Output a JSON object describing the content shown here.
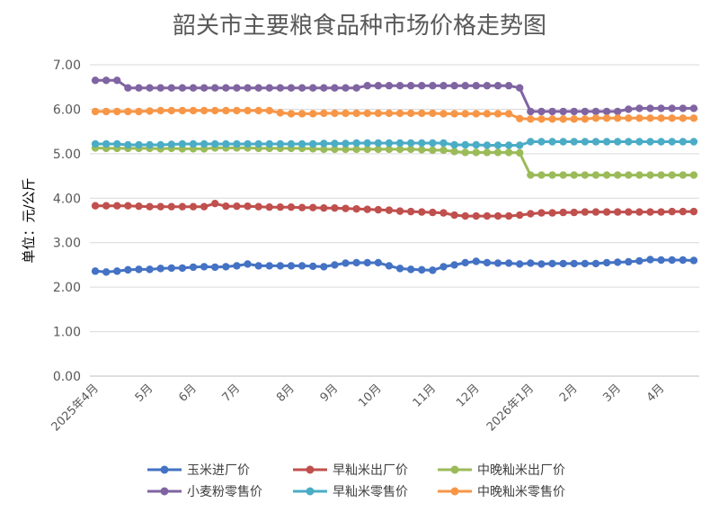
{
  "chart_data": {
    "type": "line",
    "title": "韶关市主要粮食品种市场价格走势图",
    "ylabel": "单位：元/公斤",
    "xlabel": "",
    "ylim": [
      0,
      7
    ],
    "yticks": [
      "0.00",
      "1.00",
      "2.00",
      "3.00",
      "4.00",
      "5.00",
      "6.00",
      "7.00"
    ],
    "xtick_labels": [
      "2025年4月",
      "5月",
      "6月",
      "7月",
      "8月",
      "9月",
      "10月",
      "11月",
      "12月",
      "2026年1月",
      "2月",
      "3月",
      "4月"
    ],
    "xtick_index": [
      0,
      5,
      9,
      13,
      18,
      22,
      26,
      31,
      35,
      40,
      44,
      48,
      52
    ],
    "grid": true,
    "legend_position": "bottom",
    "series": [
      {
        "name": "玉米进厂价",
        "color": "#4472C4",
        "values": [
          2.36,
          2.34,
          2.36,
          2.39,
          2.4,
          2.4,
          2.42,
          2.43,
          2.43,
          2.45,
          2.46,
          2.45,
          2.46,
          2.48,
          2.52,
          2.48,
          2.48,
          2.48,
          2.48,
          2.48,
          2.47,
          2.46,
          2.5,
          2.54,
          2.55,
          2.55,
          2.55,
          2.48,
          2.42,
          2.4,
          2.39,
          2.38,
          2.46,
          2.5,
          2.55,
          2.58,
          2.55,
          2.54,
          2.54,
          2.52,
          2.54,
          2.52,
          2.53,
          2.53,
          2.53,
          2.53,
          2.53,
          2.55,
          2.56,
          2.57,
          2.59,
          2.62,
          2.61,
          2.61,
          2.61,
          2.6
        ]
      },
      {
        "name": "早籼米出厂价",
        "color": "#C0504D",
        "values": [
          3.83,
          3.83,
          3.83,
          3.83,
          3.82,
          3.81,
          3.81,
          3.81,
          3.81,
          3.81,
          3.81,
          3.88,
          3.82,
          3.82,
          3.82,
          3.81,
          3.8,
          3.8,
          3.8,
          3.79,
          3.79,
          3.78,
          3.78,
          3.77,
          3.76,
          3.75,
          3.74,
          3.73,
          3.71,
          3.7,
          3.69,
          3.68,
          3.67,
          3.62,
          3.6,
          3.6,
          3.6,
          3.6,
          3.6,
          3.62,
          3.65,
          3.67,
          3.67,
          3.68,
          3.68,
          3.69,
          3.69,
          3.69,
          3.69,
          3.69,
          3.69,
          3.69,
          3.69,
          3.7,
          3.7,
          3.7
        ]
      },
      {
        "name": "中晚籼米出厂价",
        "color": "#9BBB59",
        "values": [
          5.13,
          5.12,
          5.12,
          5.12,
          5.12,
          5.12,
          5.11,
          5.12,
          5.11,
          5.11,
          5.11,
          5.13,
          5.13,
          5.13,
          5.13,
          5.12,
          5.12,
          5.12,
          5.12,
          5.12,
          5.11,
          5.1,
          5.1,
          5.1,
          5.1,
          5.1,
          5.1,
          5.1,
          5.1,
          5.1,
          5.09,
          5.08,
          5.08,
          5.05,
          5.03,
          5.03,
          5.03,
          5.03,
          5.03,
          5.02,
          4.52,
          4.52,
          4.52,
          4.52,
          4.52,
          4.52,
          4.52,
          4.52,
          4.52,
          4.52,
          4.52,
          4.52,
          4.52,
          4.52,
          4.52,
          4.52
        ]
      },
      {
        "name": "小麦粉零售价",
        "color": "#8064A2",
        "values": [
          6.65,
          6.65,
          6.65,
          6.48,
          6.48,
          6.48,
          6.48,
          6.48,
          6.48,
          6.48,
          6.48,
          6.48,
          6.48,
          6.48,
          6.48,
          6.48,
          6.48,
          6.48,
          6.48,
          6.48,
          6.48,
          6.48,
          6.48,
          6.48,
          6.48,
          6.53,
          6.53,
          6.53,
          6.53,
          6.53,
          6.53,
          6.53,
          6.53,
          6.53,
          6.53,
          6.53,
          6.53,
          6.53,
          6.53,
          6.48,
          5.95,
          5.95,
          5.95,
          5.95,
          5.95,
          5.95,
          5.95,
          5.95,
          5.95,
          6.0,
          6.02,
          6.02,
          6.02,
          6.02,
          6.02,
          6.02
        ]
      },
      {
        "name": "早籼米零售价",
        "color": "#4BACC6",
        "values": [
          5.22,
          5.22,
          5.22,
          5.2,
          5.2,
          5.2,
          5.2,
          5.21,
          5.22,
          5.22,
          5.22,
          5.22,
          5.22,
          5.22,
          5.22,
          5.22,
          5.22,
          5.22,
          5.22,
          5.22,
          5.22,
          5.23,
          5.23,
          5.23,
          5.24,
          5.24,
          5.24,
          5.24,
          5.24,
          5.24,
          5.24,
          5.24,
          5.24,
          5.2,
          5.2,
          5.2,
          5.19,
          5.19,
          5.19,
          5.19,
          5.27,
          5.27,
          5.27,
          5.27,
          5.27,
          5.27,
          5.27,
          5.27,
          5.27,
          5.27,
          5.27,
          5.27,
          5.27,
          5.27,
          5.27,
          5.27
        ]
      },
      {
        "name": "中晚籼米零售价",
        "color": "#F79646",
        "values": [
          5.95,
          5.95,
          5.95,
          5.95,
          5.95,
          5.96,
          5.97,
          5.97,
          5.97,
          5.97,
          5.97,
          5.97,
          5.97,
          5.97,
          5.97,
          5.97,
          5.97,
          5.92,
          5.9,
          5.9,
          5.9,
          5.91,
          5.91,
          5.91,
          5.91,
          5.91,
          5.91,
          5.91,
          5.91,
          5.91,
          5.91,
          5.91,
          5.9,
          5.9,
          5.9,
          5.9,
          5.9,
          5.9,
          5.9,
          5.79,
          5.78,
          5.78,
          5.78,
          5.78,
          5.78,
          5.78,
          5.8,
          5.8,
          5.8,
          5.8,
          5.8,
          5.8,
          5.8,
          5.8,
          5.8,
          5.8
        ]
      }
    ]
  }
}
